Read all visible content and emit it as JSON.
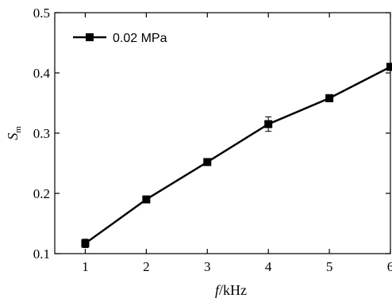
{
  "chart_data": {
    "type": "line",
    "xlabel": {
      "italic": "f",
      "rest": "/kHz"
    },
    "ylabel": {
      "italic": "S",
      "subscript": "m"
    },
    "xlim": [
      0.5,
      6
    ],
    "ylim": [
      0.1,
      0.5
    ],
    "x_ticks": [
      1,
      2,
      3,
      4,
      5,
      6
    ],
    "y_ticks": [
      "0.1",
      "0.2",
      "0.3",
      "0.4",
      "0.5"
    ],
    "legend_position": "top-left",
    "grid": false,
    "series": [
      {
        "name": "0.02 MPa",
        "color": "#000000",
        "marker": "square",
        "x": [
          1,
          2,
          3,
          4,
          5,
          6
        ],
        "y": [
          0.117,
          0.19,
          0.252,
          0.315,
          0.358,
          0.41
        ],
        "error": [
          0.007,
          0.004,
          0.003,
          0.012,
          0.006,
          0.006
        ]
      }
    ]
  }
}
